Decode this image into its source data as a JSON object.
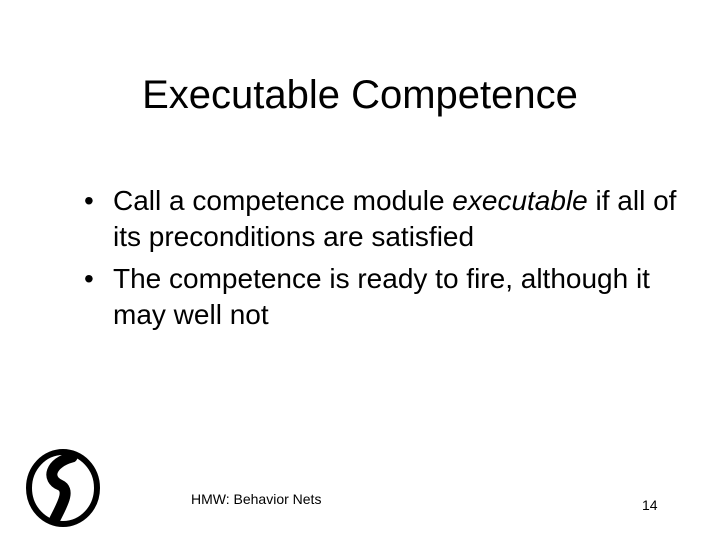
{
  "slide": {
    "title": "Executable Competence",
    "bullets": [
      {
        "marker": "•",
        "text_before": "Call a competence module ",
        "emphasis": "executable",
        "text_after": " if all of its preconditions are satisfied"
      },
      {
        "marker": "•",
        "text": "The competence is ready to fire, although it may well not"
      }
    ],
    "footer": "HMW: Behavior Nets",
    "page_number": "14",
    "logo_icon": "circle-swirl-logo-icon"
  }
}
